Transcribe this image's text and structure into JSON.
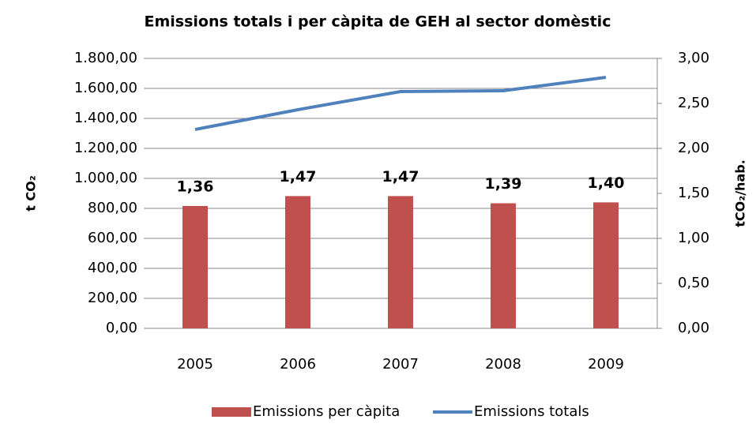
{
  "chart_data": {
    "type": "bar_line",
    "title": "Emissions totals i per càpita de GEH al sector domèstic",
    "y_label": "t CO₂",
    "y2_label": "tCO₂/hab.",
    "categories": [
      "2005",
      "2006",
      "2007",
      "2008",
      "2009"
    ],
    "series": [
      {
        "name": "Emissions per càpita",
        "type": "bar",
        "axis": "y2",
        "color": "#c0504d",
        "values": [
          1.36,
          1.47,
          1.47,
          1.39,
          1.4
        ],
        "value_labels": [
          "1,36",
          "1,47",
          "1,47",
          "1,39",
          "1,40"
        ]
      },
      {
        "name": "Emissions totals",
        "type": "line",
        "axis": "y",
        "color": "#4f81bd",
        "values": [
          1326,
          1458,
          1579,
          1584,
          1674
        ]
      }
    ],
    "ylim": [
      0,
      1800
    ],
    "yticks": [
      {
        "value": 0,
        "label": "0,00"
      },
      {
        "value": 200,
        "label": "200,00"
      },
      {
        "value": 400,
        "label": "400,00"
      },
      {
        "value": 600,
        "label": "600,00"
      },
      {
        "value": 800,
        "label": "800,00"
      },
      {
        "value": 1000,
        "label": "1.000,00"
      },
      {
        "value": 1200,
        "label": "1.200,00"
      },
      {
        "value": 1400,
        "label": "1.400,00"
      },
      {
        "value": 1600,
        "label": "1.600,00"
      },
      {
        "value": 1800,
        "label": "1.800,00"
      }
    ],
    "y2lim": [
      0,
      3
    ],
    "y2ticks": [
      {
        "value": 0,
        "label": "0,00"
      },
      {
        "value": 0.5,
        "label": "0,50"
      },
      {
        "value": 1,
        "label": "1,00"
      },
      {
        "value": 1.5,
        "label": "1,50"
      },
      {
        "value": 2,
        "label": "2,00"
      },
      {
        "value": 2.5,
        "label": "2,50"
      },
      {
        "value": 3,
        "label": "3,00"
      }
    ],
    "grid": true,
    "legend": "bottom"
  }
}
